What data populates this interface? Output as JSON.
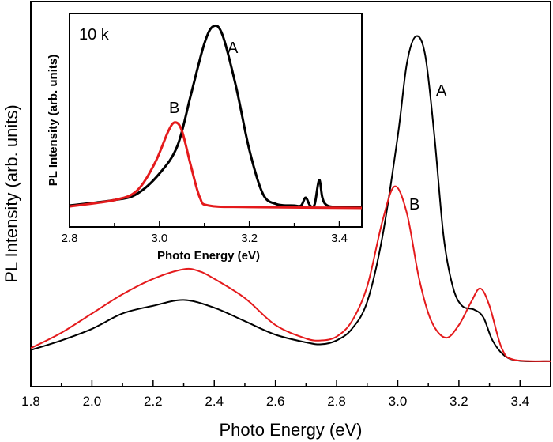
{
  "chart_data": [
    {
      "type": "line",
      "xlabel": "Photo Energy (eV)",
      "ylabel": "PL Intensity (arb. units)",
      "xlim": [
        1.8,
        3.5
      ],
      "ylim": [
        0,
        1
      ],
      "xticks": [
        "1.8",
        "2.0",
        "2.2",
        "2.4",
        "2.6",
        "2.8",
        "3.0",
        "3.2",
        "3.4"
      ],
      "grid": false,
      "series": [
        {
          "name": "A",
          "color": "#000000",
          "x": [
            1.8,
            1.9,
            2.0,
            2.1,
            2.2,
            2.3,
            2.4,
            2.5,
            2.6,
            2.7,
            2.75,
            2.8,
            2.85,
            2.9,
            2.95,
            3.0,
            3.03,
            3.06,
            3.09,
            3.12,
            3.15,
            3.18,
            3.21,
            3.25,
            3.28,
            3.31,
            3.35,
            3.4,
            3.5
          ],
          "y": [
            0.095,
            0.12,
            0.15,
            0.19,
            0.21,
            0.225,
            0.205,
            0.17,
            0.135,
            0.115,
            0.11,
            0.12,
            0.15,
            0.22,
            0.39,
            0.65,
            0.84,
            0.91,
            0.86,
            0.65,
            0.39,
            0.26,
            0.21,
            0.2,
            0.18,
            0.12,
            0.08,
            0.067,
            0.066
          ]
        },
        {
          "name": "B",
          "color": "#e41a1c",
          "x": [
            1.8,
            1.9,
            2.0,
            2.1,
            2.2,
            2.3,
            2.35,
            2.4,
            2.5,
            2.6,
            2.7,
            2.75,
            2.8,
            2.85,
            2.9,
            2.95,
            2.99,
            3.03,
            3.07,
            3.11,
            3.157,
            3.2,
            3.24,
            3.27,
            3.3,
            3.34,
            3.38,
            3.5
          ],
          "y": [
            0.1,
            0.14,
            0.19,
            0.24,
            0.28,
            0.305,
            0.3,
            0.28,
            0.23,
            0.16,
            0.125,
            0.12,
            0.13,
            0.17,
            0.26,
            0.43,
            0.52,
            0.45,
            0.28,
            0.17,
            0.127,
            0.16,
            0.22,
            0.255,
            0.21,
            0.1,
            0.07,
            0.066
          ]
        }
      ]
    },
    {
      "type": "line",
      "title": "10 k",
      "xlabel": "Photo Energy (eV)",
      "ylabel": "PL Intensity (arb. units)",
      "xlim": [
        2.8,
        3.45
      ],
      "ylim": [
        0,
        1
      ],
      "xticks": [
        "2.8",
        "3.0",
        "3.2",
        "3.4"
      ],
      "grid": false,
      "series": [
        {
          "name": "A",
          "color": "#000000",
          "x": [
            2.8,
            2.9,
            2.95,
            3.0,
            3.04,
            3.07,
            3.1,
            3.12,
            3.14,
            3.17,
            3.2,
            3.23,
            3.26,
            3.3,
            3.315,
            3.325,
            3.335,
            3.345,
            3.355,
            3.362,
            3.37,
            3.39,
            3.45
          ],
          "y": [
            0.1,
            0.126,
            0.155,
            0.25,
            0.38,
            0.62,
            0.86,
            0.94,
            0.9,
            0.66,
            0.36,
            0.155,
            0.107,
            0.1,
            0.1,
            0.137,
            0.1,
            0.105,
            0.22,
            0.14,
            0.105,
            0.093,
            0.093
          ]
        },
        {
          "name": "B",
          "color": "#e41a1c",
          "x": [
            2.8,
            2.9,
            2.95,
            2.99,
            3.02,
            3.035,
            3.05,
            3.07,
            3.09,
            3.11,
            3.2,
            3.45
          ],
          "y": [
            0.096,
            0.126,
            0.17,
            0.3,
            0.45,
            0.49,
            0.45,
            0.285,
            0.137,
            0.1,
            0.093,
            0.089
          ]
        }
      ]
    }
  ]
}
